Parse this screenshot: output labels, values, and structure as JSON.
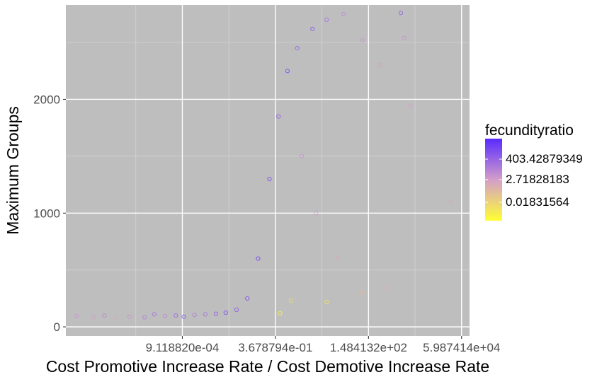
{
  "chart_data": {
    "type": "scatter",
    "xlabel": "Cost Promotive Increase Rate / Cost Demotive Increase Rate",
    "ylabel": "Maximum Groups",
    "x_scale": "log",
    "xlim": [
      5e-07,
      100000.0
    ],
    "ylim": [
      -80,
      2830
    ],
    "x_ticks": [
      {
        "value": 0.000911882,
        "label": "9.118820e-04"
      },
      {
        "value": 0.3678794,
        "label": "3.678794e-01"
      },
      {
        "value": 148.4132,
        "label": "1.484132e+02"
      },
      {
        "value": 59874.14,
        "label": "5.987414e+04"
      }
    ],
    "y_ticks": [
      {
        "value": 0,
        "label": "0"
      },
      {
        "value": 1000,
        "label": "1000"
      },
      {
        "value": 2000,
        "label": "2000"
      }
    ],
    "grid": true,
    "legend": {
      "title": "fecundityratio",
      "placement": "right",
      "labels": [
        "403.42879349",
        "2.71828183",
        "0.01831564"
      ],
      "color_low": "#ffff33",
      "color_mid": "#d39ec9",
      "color_high": "#5a2bff"
    },
    "series": [
      {
        "points": [
          {
            "x": 1e-06,
            "y": 95,
            "c": 0.55
          },
          {
            "x": 3e-06,
            "y": 85,
            "c": 0.5
          },
          {
            "x": 6e-06,
            "y": 100,
            "c": 0.6
          },
          {
            "x": 1.2e-05,
            "y": 75,
            "c": 0.45
          },
          {
            "x": 3e-05,
            "y": 90,
            "c": 0.55
          },
          {
            "x": 8e-05,
            "y": 85,
            "c": 0.65
          },
          {
            "x": 0.00015,
            "y": 110,
            "c": 0.7
          },
          {
            "x": 0.0003,
            "y": 95,
            "c": 0.6
          },
          {
            "x": 0.0006,
            "y": 100,
            "c": 0.75
          },
          {
            "x": 0.001,
            "y": 90,
            "c": 0.8
          },
          {
            "x": 0.002,
            "y": 105,
            "c": 0.65
          },
          {
            "x": 0.004,
            "y": 110,
            "c": 0.7
          },
          {
            "x": 0.008,
            "y": 115,
            "c": 0.8
          },
          {
            "x": 0.015,
            "y": 125,
            "c": 0.85
          },
          {
            "x": 0.03,
            "y": 150,
            "c": 0.8
          },
          {
            "x": 0.06,
            "y": 250,
            "c": 0.85
          },
          {
            "x": 0.12,
            "y": 600,
            "c": 0.9
          },
          {
            "x": 0.25,
            "y": 1300,
            "c": 0.85
          },
          {
            "x": 0.45,
            "y": 1850,
            "c": 0.8
          },
          {
            "x": 0.8,
            "y": 2250,
            "c": 0.85
          },
          {
            "x": 1.5,
            "y": 2450,
            "c": 0.75
          },
          {
            "x": 4.0,
            "y": 2620,
            "c": 0.8
          },
          {
            "x": 10,
            "y": 2700,
            "c": 0.7
          },
          {
            "x": 30,
            "y": 2750,
            "c": 0.6
          },
          {
            "x": 100,
            "y": 2520,
            "c": 0.55
          },
          {
            "x": 300,
            "y": 2300,
            "c": 0.5
          },
          {
            "x": 1200,
            "y": 2760,
            "c": 0.75
          },
          {
            "x": 1500,
            "y": 2540,
            "c": 0.55
          },
          {
            "x": 2200,
            "y": 1940,
            "c": 0.5
          },
          {
            "x": 30000.0,
            "y": 1100,
            "c": 0.45
          },
          {
            "x": 2.0,
            "y": 1500,
            "c": 0.55
          },
          {
            "x": 5.0,
            "y": 1000,
            "c": 0.5
          },
          {
            "x": 20,
            "y": 600,
            "c": 0.45
          },
          {
            "x": 1.0,
            "y": 230,
            "c": 0.2
          },
          {
            "x": 10,
            "y": 220,
            "c": 0.15
          },
          {
            "x": 100,
            "y": 300,
            "c": 0.35
          },
          {
            "x": 500,
            "y": 350,
            "c": 0.4
          },
          {
            "x": 0.5,
            "y": 120,
            "c": 0.05
          }
        ]
      }
    ]
  }
}
